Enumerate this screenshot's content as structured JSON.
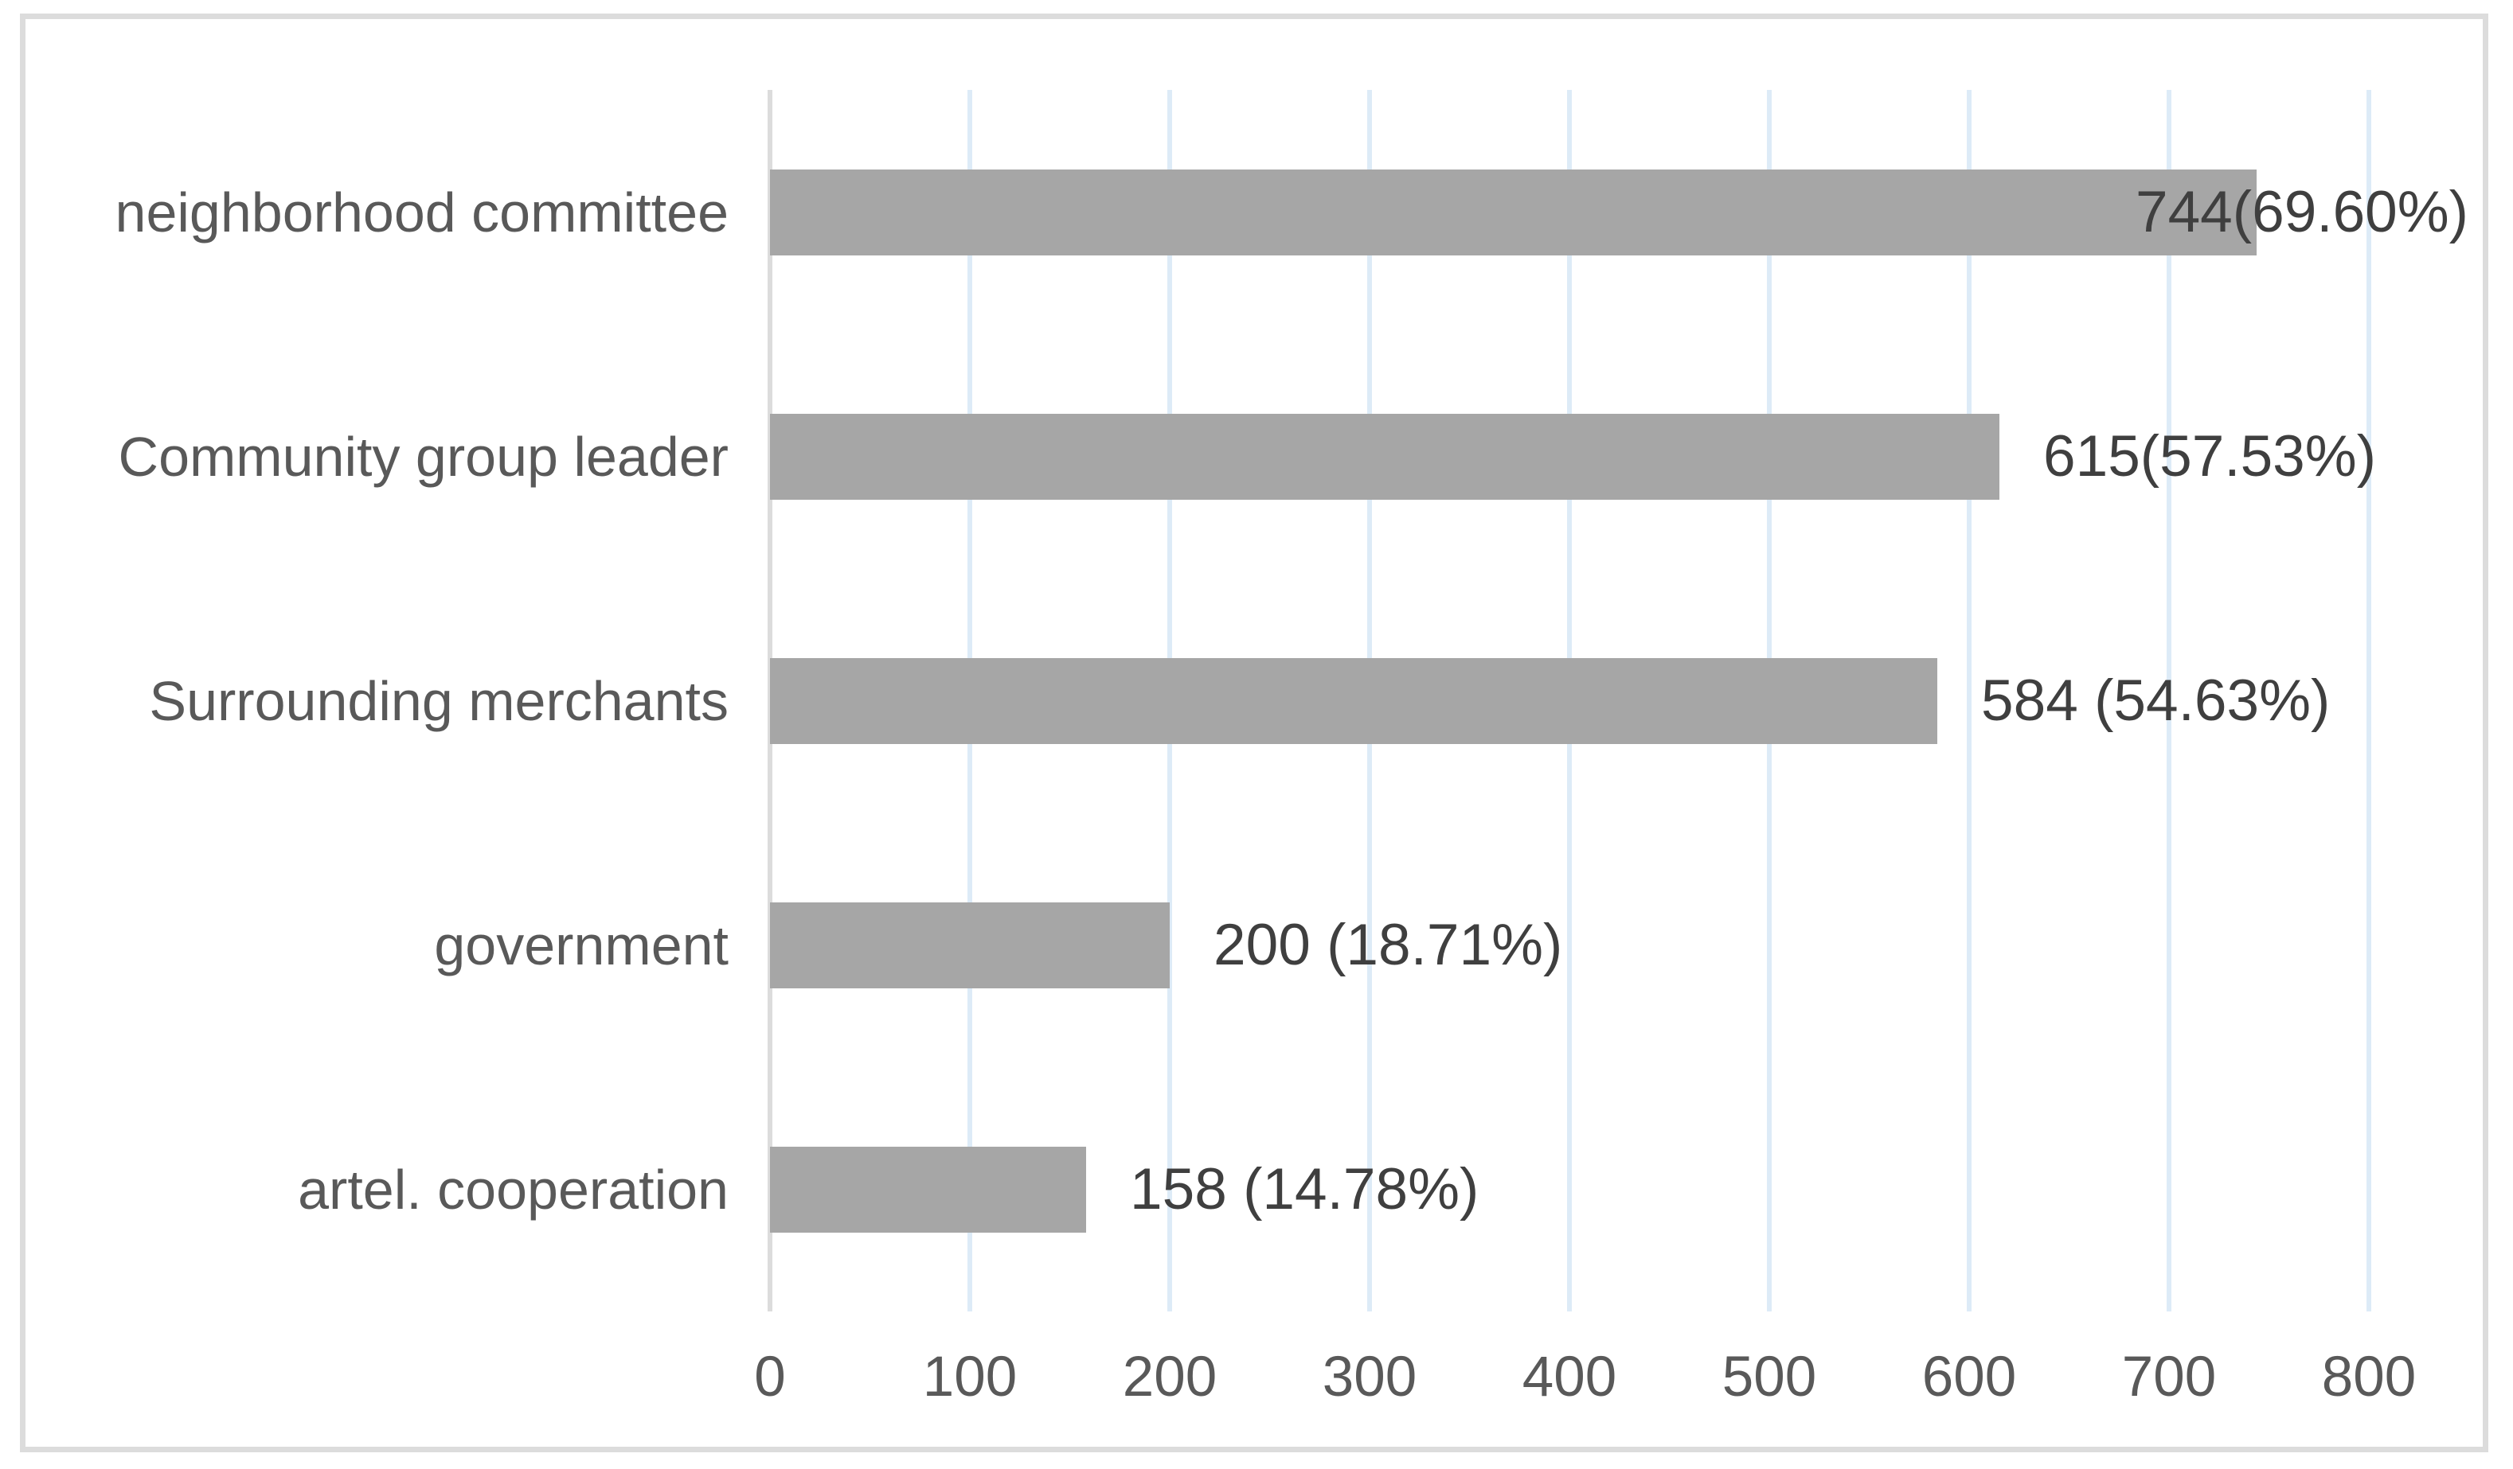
{
  "chart_data": {
    "type": "bar",
    "orientation": "horizontal",
    "title": "",
    "xlabel": "",
    "ylabel": "",
    "legend": "none",
    "grid": "vertical-only",
    "categories": [
      "neighborhood committee",
      "Community group leader",
      "Surrounding merchants",
      "government",
      "artel. cooperation"
    ],
    "values": [
      744,
      615,
      584,
      200,
      158
    ],
    "value_labels": [
      "744(69.60%)",
      "615(57.53%)",
      "584 (54.63%)",
      "200 (18.71%)",
      "158 (14.78%)"
    ],
    "percentages": [
      "69.60%",
      "57.53%",
      "54.63%",
      "18.71%",
      "14.78%"
    ],
    "x_ticks": [
      "0",
      "100",
      "200",
      "300",
      "400",
      "500",
      "600",
      "700",
      "800"
    ],
    "xlim": [
      0,
      852
    ],
    "colors": {
      "bar": "#a6a6a6",
      "gridline": "#ddebf7",
      "zero_line": "#dcdcdc",
      "category_text": "#595959",
      "value_text": "#3f3f3f",
      "tick_text": "#595959",
      "figure_border": "#dcdcdc",
      "background": "#ffffff"
    }
  }
}
